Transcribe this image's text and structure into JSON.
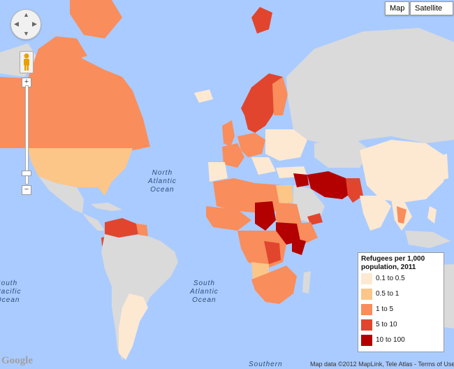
{
  "map_type_buttons": {
    "map": "Map",
    "satellite": "Satellite"
  },
  "oceans": {
    "north_atlantic": [
      "North",
      "Atlantic",
      "Ocean"
    ],
    "south_atlantic": [
      "South",
      "Atlantic",
      "Ocean"
    ],
    "south_pacific": [
      "South",
      "Pacific",
      "Ocean"
    ],
    "southern": "Southern"
  },
  "zoom": {
    "plus": "+",
    "minus": "−",
    "mid": "−"
  },
  "pan_arrows": {
    "up": "▲",
    "down": "▼",
    "left": "◀",
    "right": "▶"
  },
  "brand": "Google",
  "attribution": "Map data ©2012 MapLink, Tele Atlas - Terms of Use",
  "legend": {
    "title": "Refugees per 1,000 population, 2011",
    "items": [
      {
        "label": "0.1 to 0.5",
        "color": "#fde9d2"
      },
      {
        "label": "0.5 to 1",
        "color": "#fcc688"
      },
      {
        "label": "1 to 5",
        "color": "#f98d5c"
      },
      {
        "label": "5 to 10",
        "color": "#e2452d"
      },
      {
        "label": "10 to 100",
        "color": "#b30000"
      }
    ]
  },
  "colors": {
    "water": "#aacbff",
    "no_data": "#dadada"
  }
}
